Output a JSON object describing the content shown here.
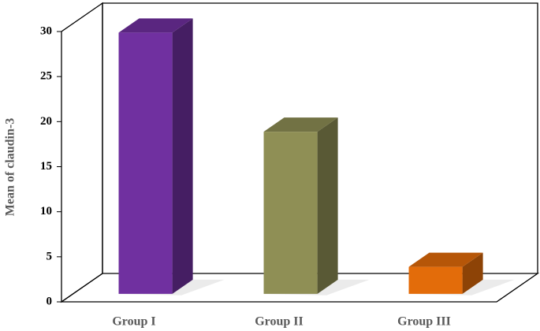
{
  "chart_data": {
    "type": "bar3d",
    "y_label": "Mean of claudin-3",
    "categories": [
      "Group I",
      "Group II",
      "Group III"
    ],
    "values": [
      29,
      18,
      3
    ],
    "colors": [
      "#7030a0",
      "#8f8f55",
      "#e36c0a"
    ],
    "ylim": [
      0,
      30
    ],
    "yticks": [
      0,
      5,
      10,
      15,
      20,
      25,
      30
    ],
    "grid": false
  }
}
